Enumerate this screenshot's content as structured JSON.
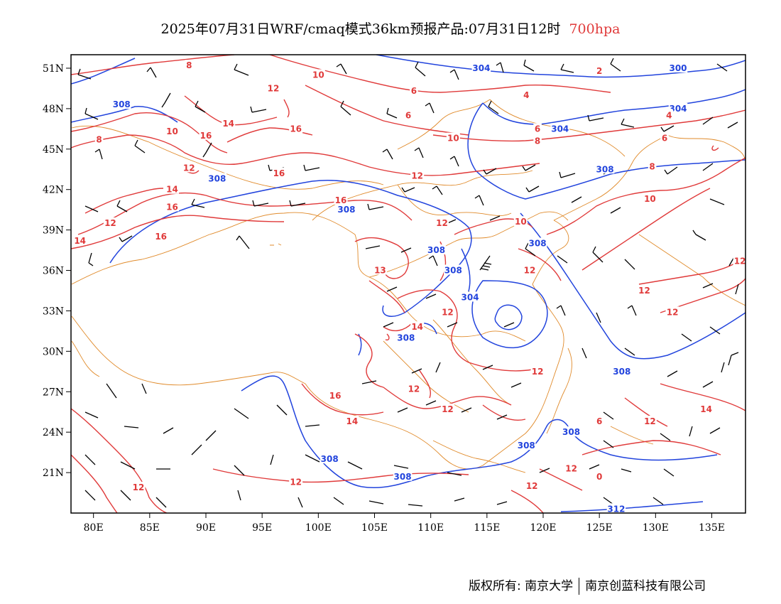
{
  "header": {
    "title": "2025年07月31日WRF/cmaq模式36km预报产品:07月31日12时",
    "level": "700hpa",
    "level_color": "#e03a3a"
  },
  "map": {
    "lon_range": [
      78,
      138
    ],
    "lat_range": [
      18,
      52
    ],
    "lon_ticks": [
      {
        "value": 80,
        "label": "80E"
      },
      {
        "value": 85,
        "label": "85E"
      },
      {
        "value": 90,
        "label": "90E"
      },
      {
        "value": 95,
        "label": "95E"
      },
      {
        "value": 100,
        "label": "100E"
      },
      {
        "value": 105,
        "label": "105E"
      },
      {
        "value": 110,
        "label": "110E"
      },
      {
        "value": 115,
        "label": "115E"
      },
      {
        "value": 120,
        "label": "120E"
      },
      {
        "value": 125,
        "label": "125E"
      },
      {
        "value": 130,
        "label": "130E"
      },
      {
        "value": 135,
        "label": "135E"
      }
    ],
    "lat_ticks": [
      {
        "value": 21,
        "label": "21N"
      },
      {
        "value": 24,
        "label": "24N"
      },
      {
        "value": 27,
        "label": "27N"
      },
      {
        "value": 30,
        "label": "30N"
      },
      {
        "value": 33,
        "label": "33N"
      },
      {
        "value": 36,
        "label": "36N"
      },
      {
        "value": 39,
        "label": "39N"
      },
      {
        "value": 42,
        "label": "42N"
      },
      {
        "value": 45,
        "label": "45N"
      },
      {
        "value": 48,
        "label": "48N"
      },
      {
        "value": 51,
        "label": "51N"
      }
    ],
    "colors": {
      "height_contour": "#2244dd",
      "temperature_contour": "#e03a3a",
      "boundary": "#e08a2a",
      "wind_barb": "#000000"
    },
    "height_labels": [
      {
        "lon": 114.5,
        "lat": 51.0,
        "text": "304"
      },
      {
        "lon": 132.0,
        "lat": 51.0,
        "text": "300"
      },
      {
        "lon": 132.0,
        "lat": 48.0,
        "text": "304"
      },
      {
        "lon": 121.5,
        "lat": 46.5,
        "text": "304"
      },
      {
        "lon": 82.5,
        "lat": 48.3,
        "text": "308"
      },
      {
        "lon": 91.0,
        "lat": 42.8,
        "text": "308"
      },
      {
        "lon": 102.5,
        "lat": 40.5,
        "text": "308"
      },
      {
        "lon": 125.5,
        "lat": 43.5,
        "text": "308"
      },
      {
        "lon": 119.5,
        "lat": 38.0,
        "text": "308"
      },
      {
        "lon": 110.5,
        "lat": 37.5,
        "text": "308"
      },
      {
        "lon": 112.0,
        "lat": 36.0,
        "text": "308"
      },
      {
        "lon": 113.5,
        "lat": 34.0,
        "text": "304"
      },
      {
        "lon": 107.8,
        "lat": 31.0,
        "text": "308"
      },
      {
        "lon": 127.0,
        "lat": 28.5,
        "text": "308"
      },
      {
        "lon": 122.5,
        "lat": 24.0,
        "text": "308"
      },
      {
        "lon": 118.5,
        "lat": 23.0,
        "text": "308"
      },
      {
        "lon": 101.0,
        "lat": 22.0,
        "text": "308"
      },
      {
        "lon": 107.5,
        "lat": 20.7,
        "text": "308"
      },
      {
        "lon": 126.5,
        "lat": 18.3,
        "text": "312"
      }
    ],
    "temp_labels": [
      {
        "lon": 88.5,
        "lat": 51.2,
        "text": "8"
      },
      {
        "lon": 100.0,
        "lat": 50.5,
        "text": "10"
      },
      {
        "lon": 96.0,
        "lat": 49.5,
        "text": "12"
      },
      {
        "lon": 108.5,
        "lat": 49.3,
        "text": "6"
      },
      {
        "lon": 118.5,
        "lat": 49.0,
        "text": "4"
      },
      {
        "lon": 125.0,
        "lat": 50.8,
        "text": "2"
      },
      {
        "lon": 131.2,
        "lat": 47.5,
        "text": "4"
      },
      {
        "lon": 108.0,
        "lat": 47.5,
        "text": "6"
      },
      {
        "lon": 119.5,
        "lat": 46.5,
        "text": "6"
      },
      {
        "lon": 119.5,
        "lat": 45.6,
        "text": "8"
      },
      {
        "lon": 130.8,
        "lat": 45.8,
        "text": "6"
      },
      {
        "lon": 80.5,
        "lat": 45.7,
        "text": "8"
      },
      {
        "lon": 87.0,
        "lat": 46.3,
        "text": "10"
      },
      {
        "lon": 92.0,
        "lat": 46.9,
        "text": "14"
      },
      {
        "lon": 90.0,
        "lat": 46.0,
        "text": "16"
      },
      {
        "lon": 98.0,
        "lat": 46.5,
        "text": "16"
      },
      {
        "lon": 112.0,
        "lat": 45.8,
        "text": "10"
      },
      {
        "lon": 88.5,
        "lat": 43.6,
        "text": "12"
      },
      {
        "lon": 96.5,
        "lat": 43.2,
        "text": "16"
      },
      {
        "lon": 108.8,
        "lat": 43.0,
        "text": "12"
      },
      {
        "lon": 129.7,
        "lat": 43.7,
        "text": "8"
      },
      {
        "lon": 87.0,
        "lat": 42.0,
        "text": "14"
      },
      {
        "lon": 87.0,
        "lat": 40.7,
        "text": "16"
      },
      {
        "lon": 102.0,
        "lat": 41.2,
        "text": "16"
      },
      {
        "lon": 129.5,
        "lat": 41.3,
        "text": "10"
      },
      {
        "lon": 81.5,
        "lat": 39.5,
        "text": "12"
      },
      {
        "lon": 78.8,
        "lat": 38.2,
        "text": "14"
      },
      {
        "lon": 86.0,
        "lat": 38.5,
        "text": "16"
      },
      {
        "lon": 111.0,
        "lat": 39.5,
        "text": "12"
      },
      {
        "lon": 118.0,
        "lat": 39.6,
        "text": "10"
      },
      {
        "lon": 105.5,
        "lat": 36.0,
        "text": "13"
      },
      {
        "lon": 118.8,
        "lat": 36.0,
        "text": "12"
      },
      {
        "lon": 137.5,
        "lat": 36.7,
        "text": "12"
      },
      {
        "lon": 129.0,
        "lat": 34.5,
        "text": "12"
      },
      {
        "lon": 131.5,
        "lat": 32.9,
        "text": "12"
      },
      {
        "lon": 111.5,
        "lat": 32.9,
        "text": "12"
      },
      {
        "lon": 108.8,
        "lat": 31.8,
        "text": "14"
      },
      {
        "lon": 119.5,
        "lat": 28.5,
        "text": "12"
      },
      {
        "lon": 108.5,
        "lat": 27.2,
        "text": "12"
      },
      {
        "lon": 111.5,
        "lat": 25.7,
        "text": "12"
      },
      {
        "lon": 101.5,
        "lat": 26.7,
        "text": "16"
      },
      {
        "lon": 103.0,
        "lat": 24.8,
        "text": "14"
      },
      {
        "lon": 134.5,
        "lat": 25.7,
        "text": "14"
      },
      {
        "lon": 125.0,
        "lat": 24.8,
        "text": "6"
      },
      {
        "lon": 129.5,
        "lat": 24.8,
        "text": "12"
      },
      {
        "lon": 122.5,
        "lat": 21.3,
        "text": "12"
      },
      {
        "lon": 125.0,
        "lat": 20.7,
        "text": "0"
      },
      {
        "lon": 98.0,
        "lat": 20.3,
        "text": "12"
      },
      {
        "lon": 84.0,
        "lat": 19.9,
        "text": "12"
      },
      {
        "lon": 119.0,
        "lat": 20.0,
        "text": "12"
      }
    ]
  },
  "footer": {
    "copyright": "版权所有: 南京大学",
    "company": "南京创蓝科技有限公司"
  }
}
